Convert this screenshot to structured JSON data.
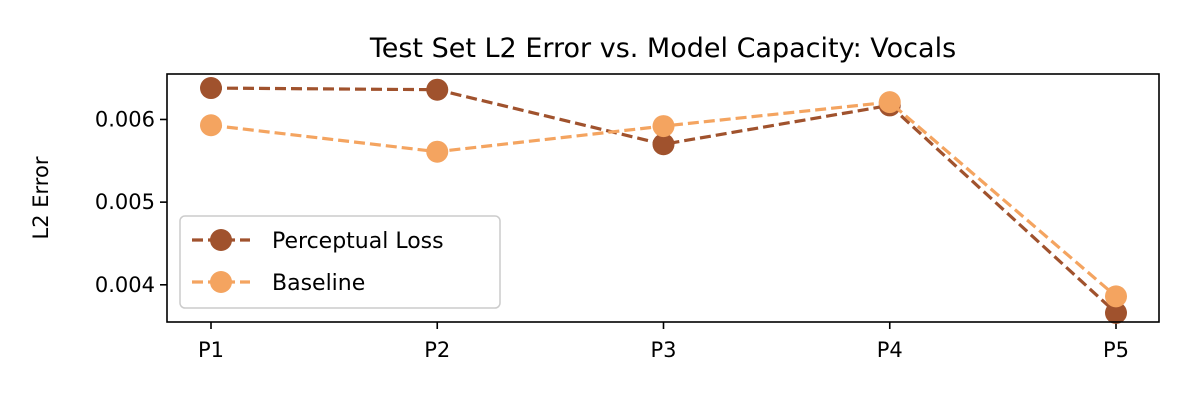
{
  "chart_data": {
    "type": "line",
    "title": "Test Set L2 Error vs. Model Capacity: Vocals",
    "xlabel": "",
    "ylabel": "L2 Error",
    "categories": [
      "P1",
      "P2",
      "P3",
      "P4",
      "P5"
    ],
    "ylim": [
      0.00355,
      0.00655
    ],
    "yticks": [
      0.004,
      0.005,
      0.006
    ],
    "ytick_labels": [
      "0.004",
      "0.005",
      "0.006"
    ],
    "grid": false,
    "legend_position": "lower-left",
    "series": [
      {
        "name": "Perceptual Loss",
        "color": "#a0522d",
        "line_style": "dashed",
        "marker": "circle",
        "values": [
          0.00638,
          0.00636,
          0.0057,
          0.00617,
          0.00366
        ]
      },
      {
        "name": "Baseline",
        "color": "#f4a460",
        "line_style": "dashed",
        "marker": "circle",
        "values": [
          0.00593,
          0.00561,
          0.00592,
          0.00621,
          0.00386
        ]
      }
    ]
  }
}
